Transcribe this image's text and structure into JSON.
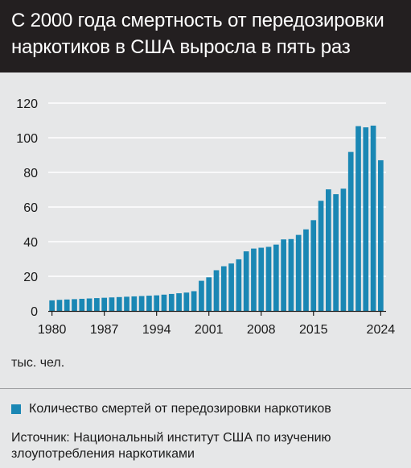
{
  "title_lines": [
    "С 2000 года смертность от передозировки",
    "наркотиков в США выросла в пять раз"
  ],
  "unit_label": "тыс. чел.",
  "legend": {
    "label": "Количество смертей от передозировки наркотиков",
    "color": "#1a87b4"
  },
  "source_lines": [
    "Источник: Национальный институт США по изучению",
    "злоупотребления наркотиками"
  ],
  "chart_data": {
    "type": "bar",
    "title": "С 2000 года смертность от передозировки наркотиков в США выросла в пять раз",
    "ylabel": "тыс. чел.",
    "ylim": [
      0,
      120
    ],
    "yticks": [
      0,
      20,
      40,
      60,
      80,
      100,
      120
    ],
    "xtick_labels": [
      "1980",
      "1987",
      "1994",
      "2001",
      "2008",
      "2015",
      "2024"
    ],
    "grid": "horizontal",
    "legend_position": "bottom",
    "series": [
      {
        "name": "Количество смертей от передозировки наркотиков",
        "color": "#1a87b4",
        "x": [
          1980,
          1981,
          1982,
          1983,
          1984,
          1985,
          1986,
          1987,
          1988,
          1989,
          1990,
          1991,
          1992,
          1993,
          1994,
          1995,
          1996,
          1997,
          1998,
          1999,
          2000,
          2001,
          2002,
          2003,
          2004,
          2005,
          2006,
          2007,
          2008,
          2009,
          2010,
          2011,
          2012,
          2013,
          2014,
          2015,
          2016,
          2017,
          2018,
          2019,
          2020,
          2021,
          2022,
          2023,
          2024
        ],
        "values": [
          6.1,
          6.4,
          6.6,
          6.8,
          7.0,
          7.2,
          7.4,
          7.6,
          7.8,
          8.0,
          8.2,
          8.4,
          8.6,
          8.8,
          9.0,
          9.4,
          9.8,
          10.2,
          10.6,
          11.4,
          17.4,
          19.4,
          23.5,
          25.8,
          27.4,
          29.8,
          34.4,
          36.0,
          36.5,
          37.0,
          38.3,
          41.3,
          41.5,
          43.9,
          47.1,
          52.4,
          63.6,
          70.2,
          67.4,
          70.6,
          91.8,
          106.7,
          106.0,
          107.0,
          87.0
        ]
      }
    ]
  }
}
